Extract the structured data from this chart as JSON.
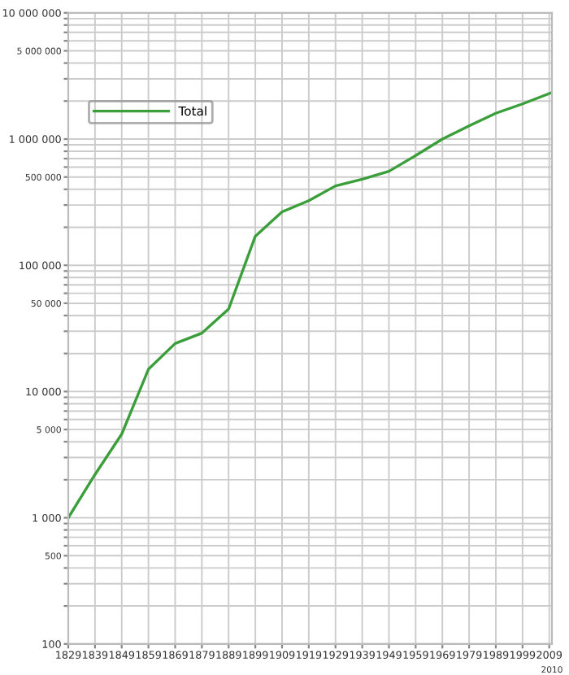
{
  "chart_data": {
    "type": "line",
    "x": [
      1829,
      1839,
      1849,
      1859,
      1869,
      1879,
      1889,
      1899,
      1909,
      1919,
      1929,
      1939,
      1949,
      1959,
      1969,
      1979,
      1989,
      1999,
      2010
    ],
    "series": [
      {
        "name": "Total",
        "color": "#3a9e3a",
        "values": [
          1000,
          2200,
          4600,
          15000,
          24000,
          29000,
          45000,
          170000,
          265000,
          325000,
          425000,
          480000,
          555000,
          740000,
          1000000,
          1270000,
          1600000,
          1900000,
          2340000
        ]
      }
    ],
    "log": true,
    "xlim": [
      1829,
      2010
    ],
    "xticks": [
      1829,
      1839,
      1849,
      1859,
      1869,
      1879,
      1889,
      1899,
      1909,
      1919,
      1929,
      1939,
      1949,
      1959,
      1969,
      1979,
      1989,
      1999,
      2009
    ],
    "annotations": [
      "2010"
    ],
    "ylim": [
      100,
      10000000
    ],
    "yticks": [
      {
        "value": 100,
        "label": "100"
      },
      {
        "value": 200,
        "label": null
      },
      {
        "value": 300,
        "label": null
      },
      {
        "value": 400,
        "label": null
      },
      {
        "value": 500,
        "label": "500"
      },
      {
        "value": 600,
        "label": null
      },
      {
        "value": 700,
        "label": null
      },
      {
        "value": 800,
        "label": null
      },
      {
        "value": 900,
        "label": null
      },
      {
        "value": 1000,
        "label": "1 000"
      },
      {
        "value": 2000,
        "label": null
      },
      {
        "value": 3000,
        "label": null
      },
      {
        "value": 4000,
        "label": null
      },
      {
        "value": 5000,
        "label": "5 000"
      },
      {
        "value": 6000,
        "label": null
      },
      {
        "value": 7000,
        "label": null
      },
      {
        "value": 8000,
        "label": null
      },
      {
        "value": 9000,
        "label": null
      },
      {
        "value": 10000,
        "label": "10 000"
      },
      {
        "value": 20000,
        "label": null
      },
      {
        "value": 30000,
        "label": null
      },
      {
        "value": 40000,
        "label": null
      },
      {
        "value": 50000,
        "label": "50 000"
      },
      {
        "value": 60000,
        "label": null
      },
      {
        "value": 70000,
        "label": null
      },
      {
        "value": 80000,
        "label": null
      },
      {
        "value": 90000,
        "label": null
      },
      {
        "value": 100000,
        "label": "100 000"
      },
      {
        "value": 200000,
        "label": null
      },
      {
        "value": 300000,
        "label": null
      },
      {
        "value": 400000,
        "label": null
      },
      {
        "value": 500000,
        "label": "500 000"
      },
      {
        "value": 600000,
        "label": null
      },
      {
        "value": 700000,
        "label": null
      },
      {
        "value": 800000,
        "label": null
      },
      {
        "value": 900000,
        "label": null
      },
      {
        "value": 1000000,
        "label": "1 000 000"
      },
      {
        "value": 2000000,
        "label": null
      },
      {
        "value": 3000000,
        "label": null
      },
      {
        "value": 4000000,
        "label": null
      },
      {
        "value": 5000000,
        "label": "5 000 000"
      },
      {
        "value": 6000000,
        "label": null
      },
      {
        "value": 7000000,
        "label": null
      },
      {
        "value": 8000000,
        "label": null
      },
      {
        "value": 9000000,
        "label": null
      },
      {
        "value": 10000000,
        "label": "10 000 000"
      }
    ],
    "grid": true,
    "legend": "top left",
    "marker": "none",
    "line_style": "solid"
  }
}
